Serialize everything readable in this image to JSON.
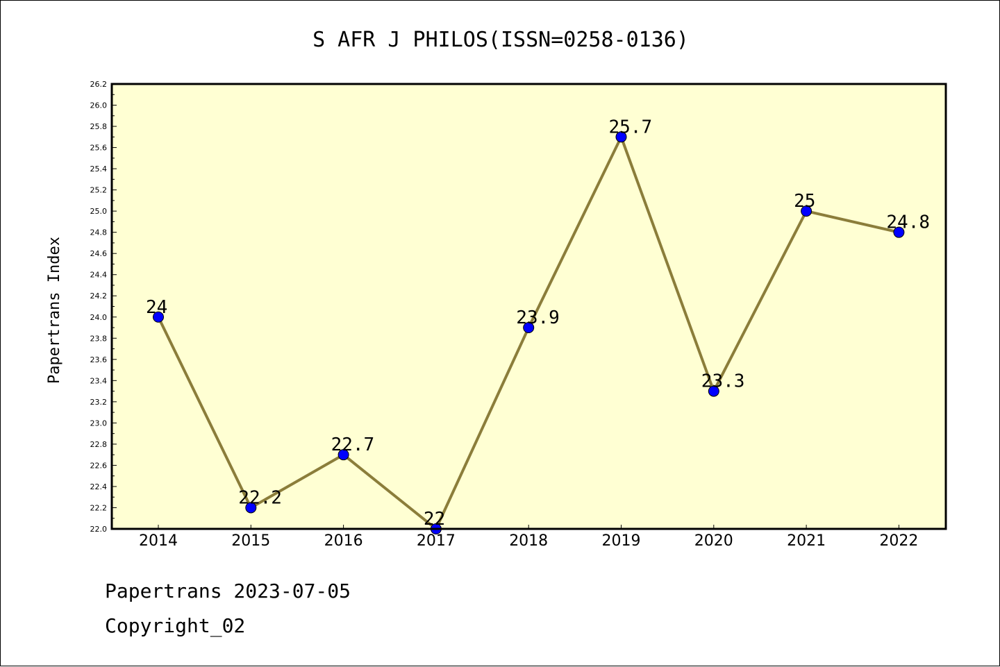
{
  "chart_data": {
    "type": "line",
    "title": "S AFR J PHILOS(ISSN=0258-0136)",
    "xlabel": "",
    "ylabel": "Papertrans Index",
    "categories": [
      "2014",
      "2015",
      "2016",
      "2017",
      "2018",
      "2019",
      "2020",
      "2021",
      "2022"
    ],
    "series": [
      {
        "values": [
          24,
          22.2,
          22.7,
          22,
          23.9,
          25.7,
          23.3,
          25,
          24.8
        ],
        "labels": [
          "24",
          "22.2",
          "22.7",
          "22",
          "23.9",
          "25.7",
          "23.3",
          "25",
          "24.8"
        ]
      }
    ],
    "ylim": [
      22.0,
      26.2
    ],
    "yticks": [
      "22.0",
      "22.2",
      "22.4",
      "22.6",
      "22.8",
      "23.0",
      "23.2",
      "23.4",
      "23.6",
      "23.8",
      "24.0",
      "24.2",
      "24.4",
      "24.6",
      "24.8",
      "25.0",
      "25.2",
      "25.4",
      "25.6",
      "25.8",
      "26.0",
      "26.2"
    ],
    "grid": false,
    "legend": "none",
    "colors": {
      "plot_background": "#ffffd3",
      "line": "#8b7d3a",
      "marker": "#0000ff"
    }
  },
  "footer": {
    "line1": "Papertrans 2023-07-05",
    "line2": "Copyright_02"
  }
}
